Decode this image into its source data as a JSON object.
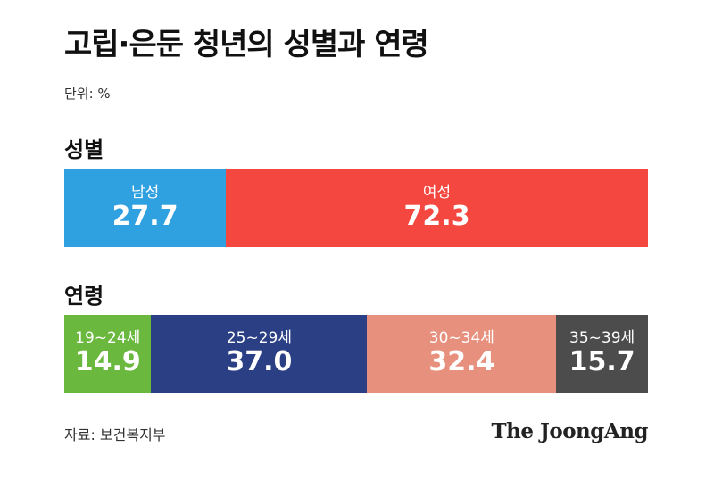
{
  "title": "고립·은둔 청년의 성별과 연령",
  "unit": "단위: %",
  "source": "자료: 보건복지부",
  "brand": "The JoongAng",
  "chart_data": [
    {
      "type": "bar",
      "stacked": true,
      "label": "성별",
      "categories": [
        "남성",
        "여성"
      ],
      "values": [
        27.7,
        72.3
      ],
      "colors": [
        "#2fa1e0",
        "#f4473f"
      ]
    },
    {
      "type": "bar",
      "stacked": true,
      "label": "연령",
      "categories": [
        "19~24세",
        "25~29세",
        "30~34세",
        "35~39세"
      ],
      "values": [
        14.9,
        37.0,
        32.4,
        15.7
      ],
      "colors": [
        "#6bb83f",
        "#2b3f84",
        "#e6907d",
        "#4c4c4c"
      ]
    }
  ]
}
